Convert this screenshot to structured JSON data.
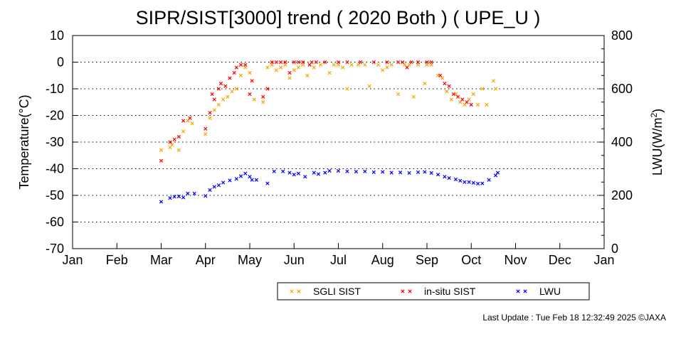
{
  "chart_data": {
    "type": "scatter",
    "title": "SIPR/SIST[3000] trend ( 2020 Both ) ( UPE_U )",
    "ylabel": "Temperature(°C)",
    "y2label_main": "LWU(W/m",
    "y2label_sup": "2",
    "y2label_end": ")",
    "x_categories": [
      "Jan",
      "Feb",
      "Mar",
      "Apr",
      "May",
      "Jun",
      "Jul",
      "Aug",
      "Sep",
      "Oct",
      "Nov",
      "Dec",
      "Jan"
    ],
    "ylim": [
      -70,
      10
    ],
    "y_ticks": [
      10,
      0,
      -10,
      -20,
      -30,
      -40,
      -50,
      -60,
      -70
    ],
    "y2lim": [
      0,
      800
    ],
    "y2_ticks": [
      800,
      600,
      400,
      200,
      0
    ],
    "grid": "dotted",
    "legend_position": "bottom",
    "series": [
      {
        "name": "SGLI SIST",
        "color": "#ffa500",
        "axis": "left",
        "points": [
          [
            3.0,
            -33
          ],
          [
            3.2,
            -32
          ],
          [
            3.25,
            -31
          ],
          [
            3.4,
            -33
          ],
          [
            3.5,
            -26
          ],
          [
            3.6,
            -22
          ],
          [
            3.7,
            -23
          ],
          [
            4.0,
            -27
          ],
          [
            4.1,
            -21
          ],
          [
            4.2,
            -18
          ],
          [
            4.3,
            -16
          ],
          [
            4.4,
            -14
          ],
          [
            4.5,
            -13
          ],
          [
            4.6,
            -11
          ],
          [
            4.7,
            -10
          ],
          [
            4.8,
            -5
          ],
          [
            4.9,
            -2
          ],
          [
            5.0,
            -4
          ],
          [
            5.1,
            -14
          ],
          [
            5.3,
            -15
          ],
          [
            5.4,
            -2
          ],
          [
            5.5,
            -1
          ],
          [
            5.6,
            -3
          ],
          [
            5.7,
            -2
          ],
          [
            5.8,
            -1
          ],
          [
            5.9,
            -6
          ],
          [
            6.0,
            -3
          ],
          [
            6.1,
            -2
          ],
          [
            6.2,
            -1
          ],
          [
            6.3,
            -5
          ],
          [
            6.45,
            -2
          ],
          [
            6.6,
            -1
          ],
          [
            6.8,
            -4
          ],
          [
            6.9,
            -1
          ],
          [
            7.0,
            -1
          ],
          [
            7.1,
            -2
          ],
          [
            7.2,
            -10
          ],
          [
            7.3,
            -1
          ],
          [
            7.45,
            -1
          ],
          [
            7.6,
            -1
          ],
          [
            7.7,
            -9
          ],
          [
            7.9,
            -1
          ],
          [
            8.0,
            -3
          ],
          [
            8.1,
            -2
          ],
          [
            8.2,
            -1
          ],
          [
            8.35,
            -12
          ],
          [
            8.5,
            -1
          ],
          [
            8.6,
            -1
          ],
          [
            8.7,
            -13
          ],
          [
            8.8,
            -1
          ],
          [
            8.95,
            -8
          ],
          [
            9.0,
            -1
          ],
          [
            9.1,
            -1
          ],
          [
            9.25,
            -5
          ],
          [
            9.35,
            -6
          ],
          [
            9.45,
            -11
          ],
          [
            9.55,
            -14
          ],
          [
            9.65,
            -12
          ],
          [
            9.75,
            -15
          ],
          [
            9.85,
            -16
          ],
          [
            9.95,
            -14
          ],
          [
            10.05,
            -12
          ],
          [
            10.15,
            -16
          ],
          [
            10.25,
            -10
          ],
          [
            10.35,
            -16
          ],
          [
            10.5,
            -7
          ],
          [
            10.55,
            -10
          ]
        ]
      },
      {
        "name": "in-situ SIST",
        "color": "#ff0000",
        "axis": "left",
        "points": [
          [
            3.0,
            -37
          ],
          [
            3.2,
            -30
          ],
          [
            3.3,
            -29
          ],
          [
            3.4,
            -28
          ],
          [
            3.5,
            -22
          ],
          [
            3.65,
            -21
          ],
          [
            4.0,
            -25
          ],
          [
            4.1,
            -19
          ],
          [
            4.15,
            -12
          ],
          [
            4.2,
            -14
          ],
          [
            4.3,
            -10
          ],
          [
            4.35,
            -8
          ],
          [
            4.45,
            -9
          ],
          [
            4.55,
            -6
          ],
          [
            4.65,
            -4
          ],
          [
            4.7,
            -2
          ],
          [
            4.8,
            -1
          ],
          [
            4.9,
            -1
          ],
          [
            5.0,
            -12
          ],
          [
            5.05,
            -7
          ],
          [
            5.3,
            -13
          ],
          [
            5.4,
            -10
          ],
          [
            5.5,
            0
          ],
          [
            5.6,
            0
          ],
          [
            5.7,
            0
          ],
          [
            5.8,
            0
          ],
          [
            5.9,
            -4
          ],
          [
            6.0,
            0
          ],
          [
            6.1,
            0
          ],
          [
            6.2,
            0
          ],
          [
            6.35,
            -1
          ],
          [
            6.4,
            0
          ],
          [
            6.5,
            0
          ],
          [
            6.7,
            0
          ],
          [
            7.0,
            0
          ],
          [
            7.2,
            0
          ],
          [
            7.5,
            0
          ],
          [
            7.8,
            0
          ],
          [
            8.1,
            0
          ],
          [
            8.35,
            0
          ],
          [
            8.45,
            0
          ],
          [
            8.55,
            -2
          ],
          [
            8.65,
            0
          ],
          [
            8.8,
            0
          ],
          [
            9.0,
            0
          ],
          [
            9.1,
            0
          ],
          [
            9.3,
            -5
          ],
          [
            9.4,
            -8
          ],
          [
            9.5,
            -9
          ],
          [
            9.6,
            -12
          ],
          [
            9.7,
            -13
          ],
          [
            9.8,
            -14
          ],
          [
            9.9,
            -15
          ],
          [
            10.0,
            -16
          ]
        ]
      },
      {
        "name": "LWU",
        "color": "#0000ff",
        "axis": "right",
        "points": [
          [
            3.0,
            176
          ],
          [
            3.2,
            190
          ],
          [
            3.3,
            195
          ],
          [
            3.4,
            196
          ],
          [
            3.5,
            192
          ],
          [
            3.6,
            207
          ],
          [
            3.75,
            207
          ],
          [
            4.0,
            198
          ],
          [
            4.1,
            220
          ],
          [
            4.2,
            232
          ],
          [
            4.3,
            238
          ],
          [
            4.4,
            248
          ],
          [
            4.55,
            256
          ],
          [
            4.7,
            262
          ],
          [
            4.8,
            272
          ],
          [
            4.9,
            282
          ],
          [
            5.0,
            270
          ],
          [
            5.05,
            258
          ],
          [
            5.15,
            258
          ],
          [
            5.4,
            245
          ],
          [
            5.55,
            290
          ],
          [
            5.75,
            290
          ],
          [
            5.9,
            285
          ],
          [
            6.0,
            278
          ],
          [
            6.1,
            282
          ],
          [
            6.25,
            270
          ],
          [
            6.45,
            285
          ],
          [
            6.55,
            280
          ],
          [
            6.7,
            285
          ],
          [
            6.8,
            292
          ],
          [
            7.0,
            292
          ],
          [
            7.2,
            290
          ],
          [
            7.4,
            289
          ],
          [
            7.6,
            290
          ],
          [
            7.8,
            287
          ],
          [
            8.0,
            288
          ],
          [
            8.2,
            285
          ],
          [
            8.4,
            286
          ],
          [
            8.6,
            284
          ],
          [
            8.8,
            287
          ],
          [
            8.95,
            288
          ],
          [
            9.1,
            284
          ],
          [
            9.25,
            278
          ],
          [
            9.4,
            270
          ],
          [
            9.5,
            265
          ],
          [
            9.65,
            260
          ],
          [
            9.75,
            255
          ],
          [
            9.85,
            250
          ],
          [
            9.95,
            250
          ],
          [
            10.05,
            247
          ],
          [
            10.15,
            244
          ],
          [
            10.25,
            245
          ],
          [
            10.4,
            258
          ],
          [
            10.55,
            275
          ],
          [
            10.6,
            285
          ]
        ]
      }
    ]
  },
  "footer": "Last Update : Tue Feb 18 12:32:49 2025  ©JAXA"
}
